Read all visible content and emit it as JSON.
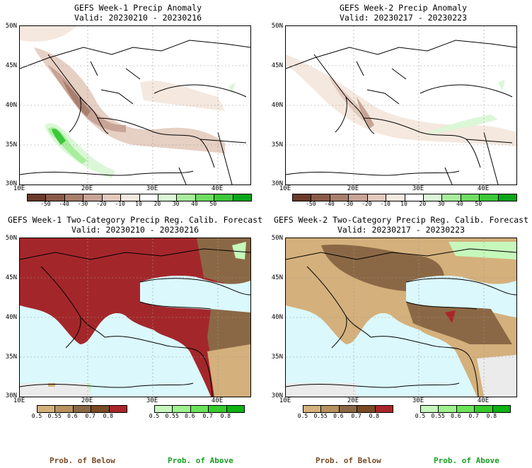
{
  "panels": {
    "p1": {
      "title": "GEFS Week-1 Precip Anomaly",
      "valid": "Valid: 20230210 - 20230216"
    },
    "p2": {
      "title": "GEFS Week-2 Precip Anomaly",
      "valid": "Valid: 20230217 - 20230223"
    },
    "p3": {
      "title": "GEFS Week-1 Two-Category Precip Reg. Calib. Forecast",
      "valid": "Valid: 20230210 - 20230216"
    },
    "p4": {
      "title": "GEFS Week-2 Two-Category Precip Reg. Calib. Forecast",
      "valid": "Valid: 20230217 - 20230223"
    }
  },
  "axes": {
    "lat_labels": [
      "50N",
      "45N",
      "40N",
      "35N",
      "30N"
    ],
    "lon_labels": [
      "10E",
      "20E",
      "30E",
      "40E"
    ]
  },
  "anomaly_colorbar": {
    "labels": [
      "-50",
      "-40",
      "-30",
      "-20",
      "-10",
      "10",
      "20",
      "30",
      "40",
      "50"
    ],
    "colors": [
      "#6b3a2a",
      "#8a5a48",
      "#a87e6c",
      "#c8a496",
      "#e3cabd",
      "#f5e8de",
      "#ffffff",
      "#dcf7d8",
      "#a8ee9c",
      "#6edc62",
      "#3cc83a",
      "#0aa51a"
    ]
  },
  "prob_below_colorbar": {
    "labels": [
      "0.5",
      "0.55",
      "0.6",
      "0.7",
      "0.8"
    ],
    "colors": [
      "#d4b07c",
      "#b8915f",
      "#8b6845",
      "#7a4a24",
      "#a8262a"
    ]
  },
  "prob_above_colorbar": {
    "labels": [
      "0.5",
      "0.55",
      "0.6",
      "0.7",
      "0.8"
    ],
    "colors": [
      "#c6f8bc",
      "#9df28e",
      "#6be45a",
      "#36cc2a",
      "#0eb214"
    ]
  },
  "legend": {
    "below_left": "Prob. of Below",
    "above_left": "Prob. of Above",
    "below_right": "Prob. of Below",
    "above_right": "Prob. of Above"
  },
  "colors": {
    "sea": "#dbf8fc",
    "land_white": "#ffffff",
    "dry_red": "#a3272a",
    "brown": "#8b6845",
    "tan": "#d4b07c"
  }
}
